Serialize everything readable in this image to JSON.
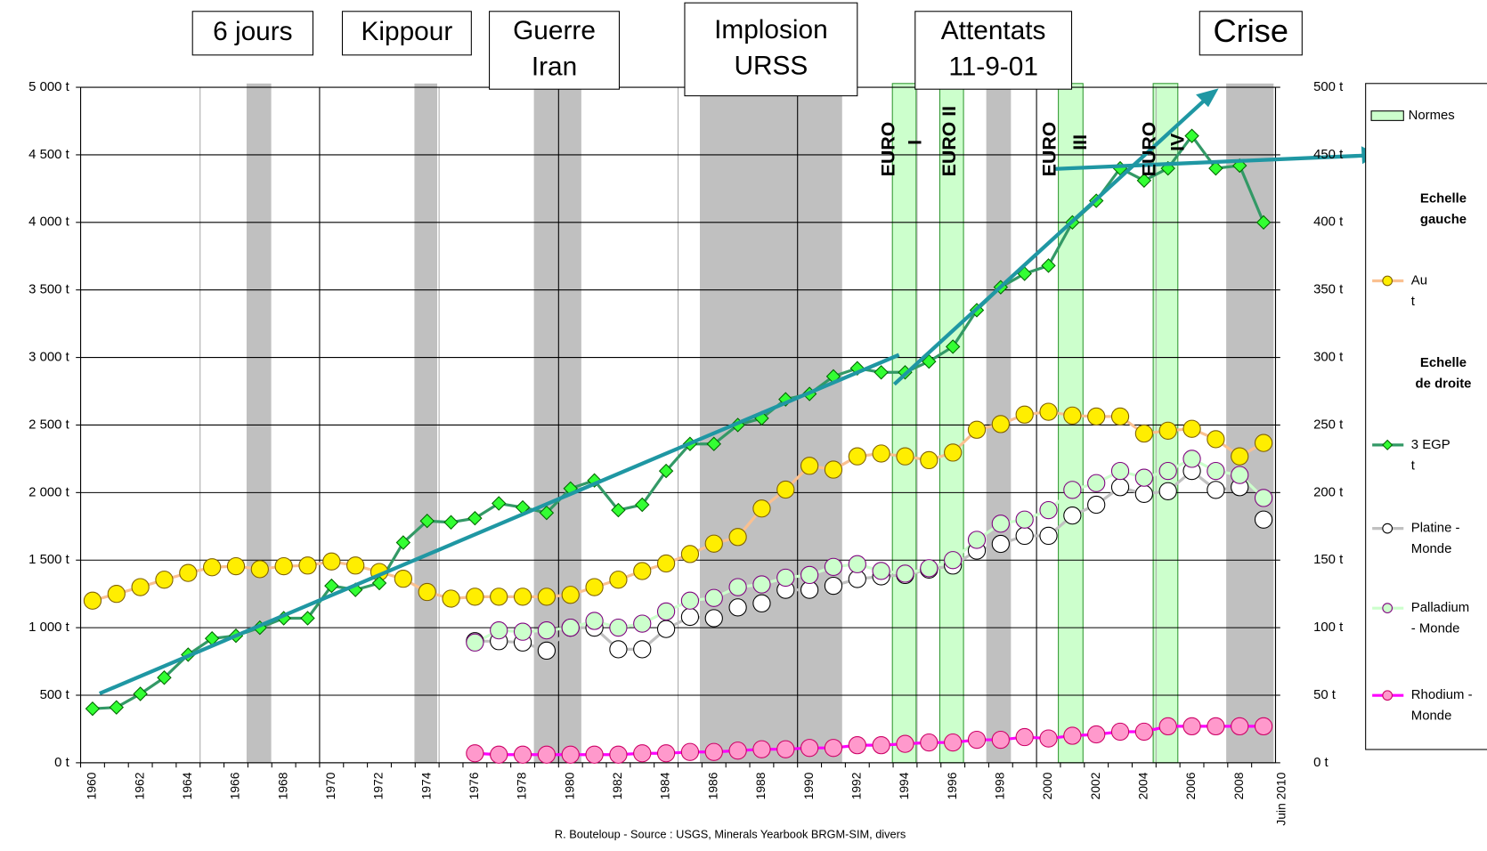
{
  "chart_data": {
    "type": "line",
    "categories": [
      "1960",
      null,
      "1962",
      null,
      "1964",
      null,
      "1966",
      null,
      "1968",
      null,
      "1970",
      null,
      "1972",
      null,
      "1974",
      null,
      "1976",
      null,
      "1978",
      null,
      "1980",
      null,
      "1982",
      null,
      "1984",
      null,
      "1986",
      null,
      "1988",
      null,
      "1990",
      null,
      "1992",
      null,
      "1994",
      null,
      "1996",
      null,
      "1998",
      null,
      "2000",
      null,
      "2002",
      null,
      "2004",
      null,
      "2006",
      null,
      "2008",
      null
    ],
    "x_end_label": "Juin 2010",
    "ylim": [
      0,
      5000
    ],
    "yticks": [
      {
        "value": 0,
        "label": "0 t"
      },
      {
        "value": 500,
        "label": "500 t"
      },
      {
        "value": 1000,
        "label": "1 000 t"
      },
      {
        "value": 1500,
        "label": "1 500 t"
      },
      {
        "value": 2000,
        "label": "2 000 t"
      },
      {
        "value": 2500,
        "label": "2 500 t"
      },
      {
        "value": 3000,
        "label": "3 000 t"
      },
      {
        "value": 3500,
        "label": "3 500 t"
      },
      {
        "value": 4000,
        "label": "4 000 t"
      },
      {
        "value": 4500,
        "label": "4 500 t"
      },
      {
        "value": 5000,
        "label": "5 000 t"
      }
    ],
    "y2lim": [
      0,
      500
    ],
    "y2ticks": [
      {
        "value": 0,
        "label": "0 t"
      },
      {
        "value": 50,
        "label": "50 t"
      },
      {
        "value": 100,
        "label": "100 t"
      },
      {
        "value": 150,
        "label": "150 t"
      },
      {
        "value": 200,
        "label": "200 t"
      },
      {
        "value": 250,
        "label": "250 t"
      },
      {
        "value": 300,
        "label": "300 t"
      },
      {
        "value": 350,
        "label": "350 t"
      },
      {
        "value": 400,
        "label": "400 t"
      },
      {
        "value": 450,
        "label": "450 t"
      },
      {
        "value": 500,
        "label": "500 t"
      }
    ],
    "grid": true,
    "annotations": [
      [
        "6 jours"
      ],
      [
        "Kippour"
      ],
      [
        "Guerre",
        "Iran"
      ],
      [
        "Implosion",
        "URSS"
      ],
      [
        "Attentats",
        "11-9-01"
      ],
      [
        "Crise"
      ]
    ],
    "euro_labels": [
      [
        "EURO",
        "I"
      ],
      [
        "EURO II"
      ],
      [
        "EURO",
        "III"
      ],
      [
        "EURO",
        "IV"
      ]
    ],
    "legend_norms": "Normes",
    "left_scale_label": [
      "Echelle",
      "gauche"
    ],
    "right_scale_label": [
      "Echelle",
      "de droite"
    ],
    "source": "R. Bouteloup - Source : USGS, Minerals Yearbook BRGM-SIM, divers",
    "series": [
      {
        "name": "Au t",
        "axis": "y",
        "color": "#fac090",
        "marker_color": "#ffee00",
        "marker_edge": "#7f6000",
        "marker": "circle",
        "values": [
          1200,
          1250,
          1300,
          1355,
          1405,
          1447,
          1455,
          1433,
          1455,
          1460,
          1490,
          1460,
          1412,
          1362,
          1264,
          1215,
          1229,
          1229,
          1229,
          1229,
          1243,
          1300,
          1355,
          1419,
          1475,
          1545,
          1622,
          1671,
          1882,
          2022,
          2198,
          2170,
          2268,
          2289,
          2268,
          2240,
          2296,
          2465,
          2507,
          2577,
          2598,
          2570,
          2563,
          2563,
          2437,
          2458,
          2472,
          2395,
          2268,
          2367
        ]
      },
      {
        "name": "3 EGP t",
        "axis": "y2",
        "color": "#339966",
        "marker_color": "#33ff33",
        "marker_edge": "#006600",
        "marker": "diamond",
        "values": [
          40,
          41,
          51,
          63,
          80,
          92,
          94,
          100,
          107,
          107,
          131,
          128,
          133,
          163,
          179,
          178,
          181,
          192,
          189,
          185,
          203,
          209,
          187,
          191,
          216,
          236,
          236,
          250,
          255,
          269,
          273,
          286,
          292,
          289,
          289,
          297,
          308,
          335,
          352,
          362,
          368,
          400,
          416,
          440,
          431,
          440,
          464,
          440,
          442,
          400
        ]
      },
      {
        "name": "Platine - Monde",
        "axis": "y2",
        "color": "#c0c0c0",
        "marker_color": "#ffffff",
        "marker_edge": "#000000",
        "marker": "circle",
        "values": [
          null,
          null,
          null,
          null,
          null,
          null,
          null,
          null,
          null,
          null,
          null,
          null,
          null,
          null,
          null,
          null,
          90,
          90,
          89,
          83,
          100,
          100,
          84,
          84,
          99,
          108,
          107,
          115,
          118,
          128,
          128,
          131,
          136,
          138,
          139,
          143,
          146,
          157,
          162,
          168,
          168,
          183,
          191,
          204,
          199,
          201,
          216,
          202,
          204,
          180
        ]
      },
      {
        "name": "Palladium - Monde",
        "axis": "y2",
        "color": "#ccffcc",
        "marker_color": "#ccffcc",
        "marker_edge": "#800080",
        "marker": "circle",
        "values": [
          null,
          null,
          null,
          null,
          null,
          null,
          null,
          null,
          null,
          null,
          null,
          null,
          null,
          null,
          null,
          null,
          89,
          98,
          97,
          98,
          100,
          105,
          100,
          103,
          112,
          120,
          122,
          130,
          132,
          137,
          139,
          145,
          147,
          142,
          140,
          144,
          150,
          165,
          177,
          180,
          187,
          202,
          207,
          216,
          211,
          216,
          225,
          216,
          213,
          196
        ]
      },
      {
        "name": "Rhodium - Monde",
        "axis": "y2",
        "color": "#ff00ff",
        "marker_color": "#ff99cc",
        "marker_edge": "#cc0066",
        "marker": "circle",
        "values": [
          null,
          null,
          null,
          null,
          null,
          null,
          null,
          null,
          null,
          null,
          null,
          null,
          null,
          null,
          null,
          null,
          7,
          6,
          6,
          6,
          6,
          6,
          6,
          7,
          7,
          8,
          8,
          9,
          10,
          10,
          11,
          11,
          13,
          13,
          14,
          15,
          15,
          17,
          17,
          19,
          18,
          20,
          21,
          23,
          23,
          27,
          27,
          27,
          27,
          27
        ]
      }
    ]
  }
}
